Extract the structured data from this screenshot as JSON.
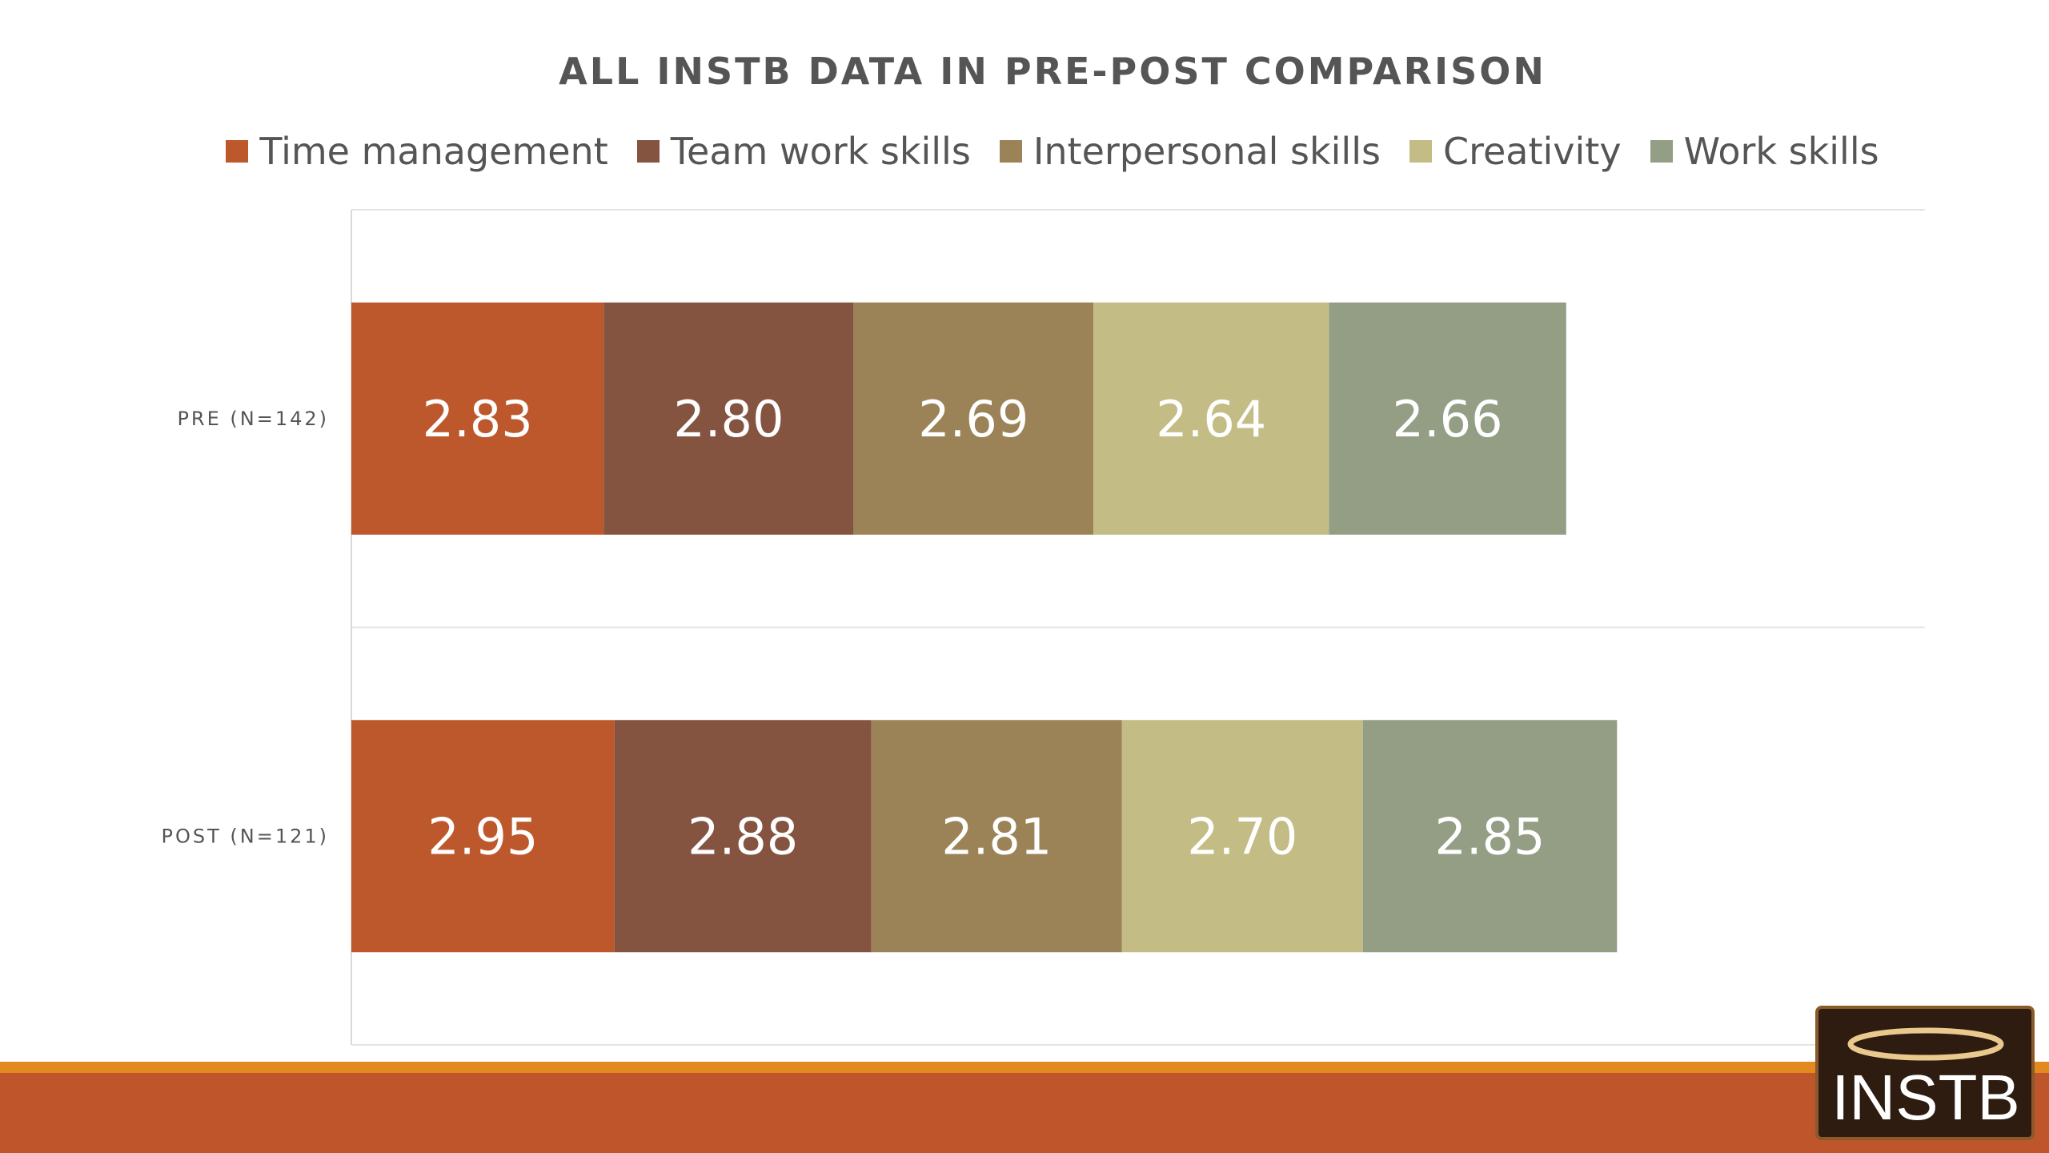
{
  "chart_data": {
    "type": "bar",
    "orientation": "horizontal",
    "stacked": true,
    "title": "ALL INSTB DATA IN PRE-POST COMPARISON",
    "categories": [
      "PRE (N=142)",
      "POST (N=121)"
    ],
    "series": [
      {
        "name": "Time management",
        "color": "#bd582c",
        "values": [
          2.83,
          2.95
        ],
        "labels": [
          "2.83",
          "2.95"
        ]
      },
      {
        "name": "Team work skills",
        "color": "#845441",
        "values": [
          2.8,
          2.88
        ],
        "labels": [
          "2.80",
          "2.88"
        ]
      },
      {
        "name": "Interpersonal skills",
        "color": "#9b8357",
        "values": [
          2.69,
          2.81
        ],
        "labels": [
          "2.69",
          "2.81"
        ]
      },
      {
        "name": "Creativity",
        "color": "#c3bc85",
        "values": [
          2.64,
          2.7
        ],
        "labels": [
          "2.64",
          "2.70"
        ]
      },
      {
        "name": "Work skills",
        "color": "#939e85",
        "values": [
          2.66,
          2.85
        ],
        "labels": [
          "2.66",
          "2.85"
        ]
      }
    ],
    "xlim": [
      0,
      18.5
    ],
    "legend": "top",
    "grid": true
  },
  "logo": {
    "text": "INSTB"
  },
  "colors": {
    "footer_bar": "#bf562b",
    "footer_line": "#e2891f",
    "logo_bg": "#2e1c10"
  }
}
